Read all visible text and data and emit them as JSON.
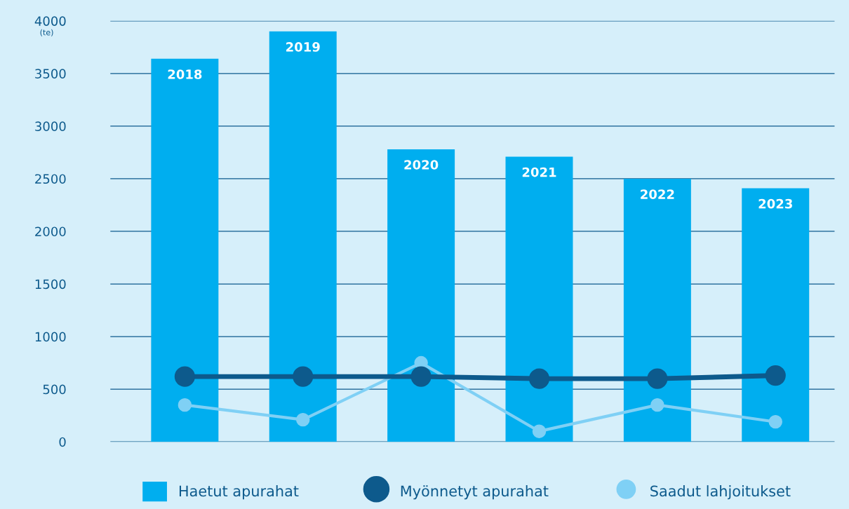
{
  "chart_data": {
    "type": "bar",
    "ylabel": "(te)",
    "categories": [
      "2018",
      "2019",
      "2020",
      "2021",
      "2022",
      "2023"
    ],
    "series": [
      {
        "name": "Haetut apurahat",
        "color": "#00aeef",
        "values": [
          3640,
          3900,
          2780,
          2710,
          2500,
          2410
        ]
      },
      {
        "name": "Myönnetyt apurahat",
        "type": "line",
        "color": "#0d5a8c",
        "values": [
          620,
          620,
          620,
          600,
          600,
          630
        ]
      },
      {
        "name": "Saadut lahjoitukset",
        "type": "line",
        "color": "#7fd0f5",
        "values": [
          350,
          210,
          750,
          100,
          350,
          190
        ]
      }
    ],
    "ylim": [
      0,
      4000
    ],
    "yticks": [
      0,
      500,
      1000,
      1500,
      2000,
      2500,
      3000,
      3500,
      4000
    ],
    "grid": "y",
    "legend": "bottom",
    "marker": "circle",
    "tick_labels": "y"
  }
}
